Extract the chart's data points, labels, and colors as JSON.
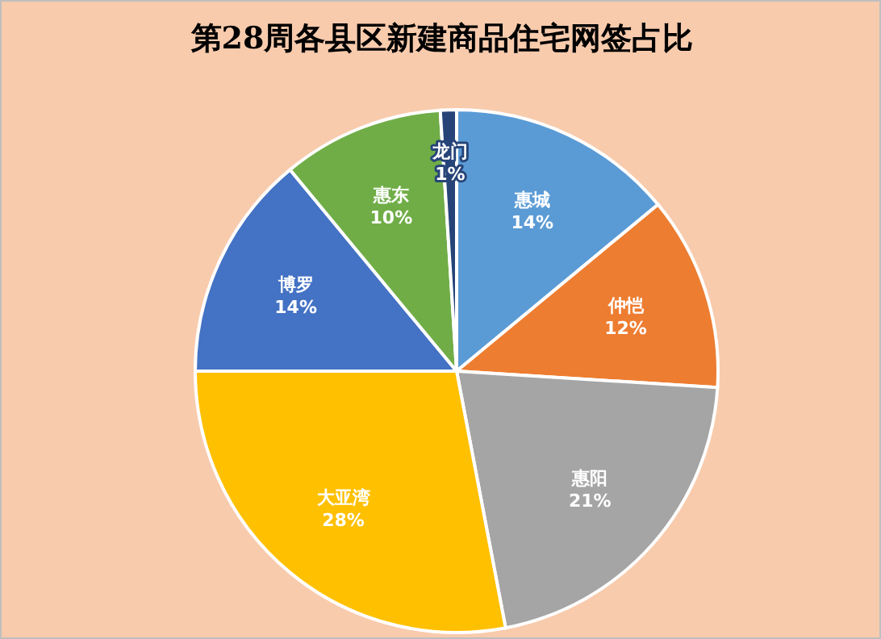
{
  "chart_data": {
    "type": "pie",
    "title": "第28周各县区新建商品住宅网签占比",
    "categories": [
      "惠城",
      "仲恺",
      "惠阳",
      "大亚湾",
      "博罗",
      "惠东",
      "龙门"
    ],
    "values": [
      14,
      12,
      21,
      28,
      14,
      10,
      1
    ],
    "value_labels": [
      "14%",
      "12%",
      "21%",
      "28%",
      "14%",
      "10%",
      "1%"
    ],
    "colors": [
      "#5b9bd5",
      "#ed7d31",
      "#a5a5a5",
      "#ffc000",
      "#4472c4",
      "#70ad47",
      "#264478"
    ],
    "legend": false
  }
}
